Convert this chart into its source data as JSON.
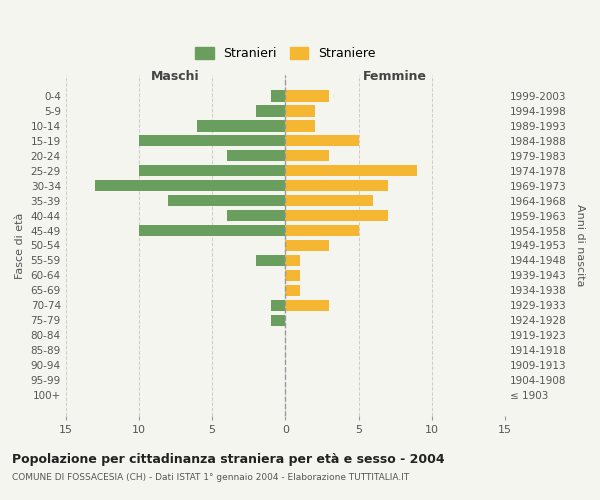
{
  "age_groups": [
    "0-4",
    "5-9",
    "10-14",
    "15-19",
    "20-24",
    "25-29",
    "30-34",
    "35-39",
    "40-44",
    "45-49",
    "50-54",
    "55-59",
    "60-64",
    "65-69",
    "70-74",
    "75-79",
    "80-84",
    "85-89",
    "90-94",
    "95-99",
    "100+"
  ],
  "birth_years": [
    "1999-2003",
    "1994-1998",
    "1989-1993",
    "1984-1988",
    "1979-1983",
    "1974-1978",
    "1969-1973",
    "1964-1968",
    "1959-1963",
    "1954-1958",
    "1949-1953",
    "1944-1948",
    "1939-1943",
    "1934-1938",
    "1929-1933",
    "1924-1928",
    "1919-1923",
    "1914-1918",
    "1909-1913",
    "1904-1908",
    "≤ 1903"
  ],
  "maschi": [
    1,
    2,
    6,
    10,
    4,
    10,
    13,
    8,
    4,
    10,
    0,
    2,
    0,
    0,
    1,
    1,
    0,
    0,
    0,
    0,
    0
  ],
  "femmine": [
    3,
    2,
    2,
    5,
    3,
    9,
    7,
    6,
    7,
    5,
    3,
    1,
    1,
    1,
    3,
    0,
    0,
    0,
    0,
    0,
    0
  ],
  "color_maschi": "#6a9e5e",
  "color_femmine": "#f5b731",
  "title": "Popolazione per cittadinanza straniera per età e sesso - 2004",
  "subtitle": "COMUNE DI FOSSACESIA (CH) - Dati ISTAT 1° gennaio 2004 - Elaborazione TUTTITALIA.IT",
  "label_maschi": "Stranieri",
  "label_femmine": "Straniere",
  "xlabel_left": "Maschi",
  "xlabel_right": "Femmine",
  "ylabel_left": "Fasce di età",
  "ylabel_right": "Anni di nascita",
  "xlim": 15,
  "background_color": "#f5f5f0"
}
